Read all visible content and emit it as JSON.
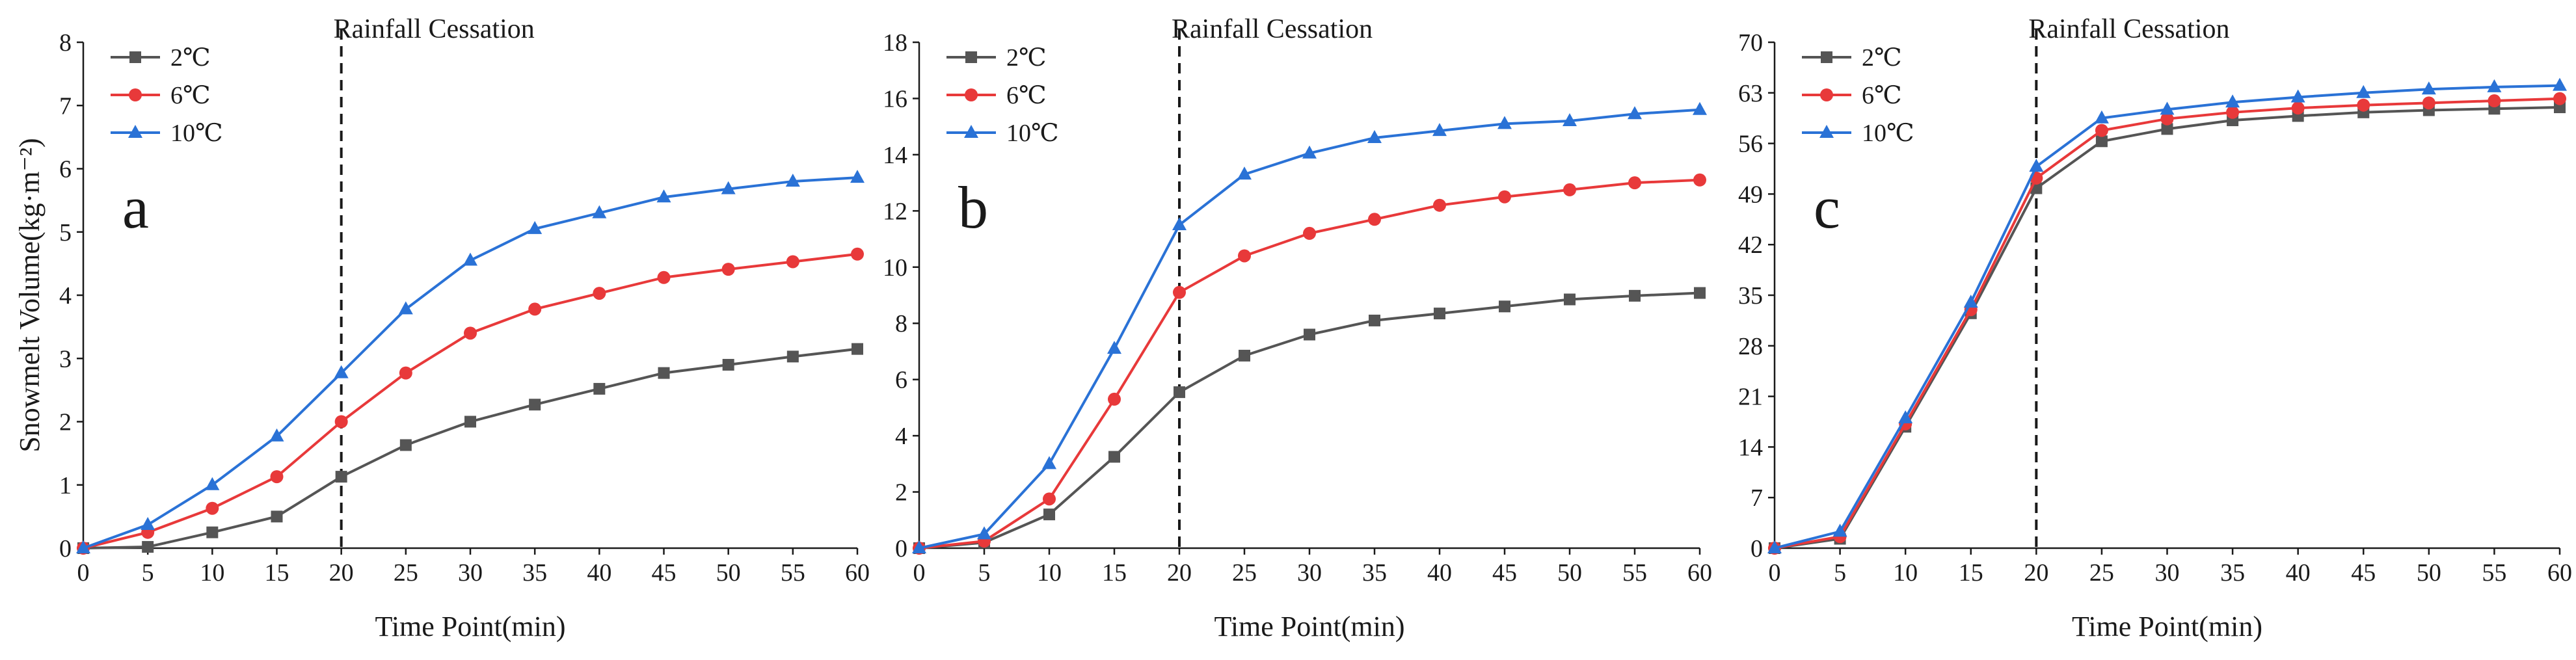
{
  "chart_data": [
    {
      "type": "line",
      "panel_label": "a",
      "annotation": "Rainfall Cessation",
      "annotation_x": 20,
      "xlabel": "Time Point(min)",
      "ylabel": "Snowmelt Volume(kg·m⁻²)",
      "x": [
        0,
        5,
        10,
        15,
        20,
        25,
        30,
        35,
        40,
        45,
        50,
        55,
        60
      ],
      "xlim": [
        0,
        60
      ],
      "ylim": [
        0,
        8
      ],
      "yticks": [
        0,
        1,
        2,
        3,
        4,
        5,
        6,
        7,
        8
      ],
      "legend_position": "top-left",
      "series": [
        {
          "name": "2℃",
          "color": "#555555",
          "marker": "square",
          "values": [
            0,
            0.02,
            0.25,
            0.5,
            1.13,
            1.63,
            2.0,
            2.27,
            2.52,
            2.77,
            2.9,
            3.03,
            3.15
          ]
        },
        {
          "name": "6℃",
          "color": "#e8393a",
          "marker": "circle",
          "values": [
            0,
            0.25,
            0.63,
            1.13,
            2.0,
            2.77,
            3.4,
            3.78,
            4.03,
            4.28,
            4.41,
            4.53,
            4.65
          ]
        },
        {
          "name": "10℃",
          "color": "#2a72d6",
          "marker": "triangle",
          "values": [
            0,
            0.37,
            1.0,
            1.77,
            2.77,
            3.78,
            4.55,
            5.05,
            5.3,
            5.55,
            5.68,
            5.8,
            5.86
          ]
        }
      ]
    },
    {
      "type": "line",
      "panel_label": "b",
      "annotation": "Rainfall Cessation",
      "annotation_x": 20,
      "xlabel": "Time Point(min)",
      "ylabel": "",
      "x": [
        0,
        5,
        10,
        15,
        20,
        25,
        30,
        35,
        40,
        45,
        50,
        55,
        60
      ],
      "xlim": [
        0,
        60
      ],
      "ylim": [
        0,
        18
      ],
      "yticks": [
        0,
        2,
        4,
        6,
        8,
        10,
        12,
        14,
        16,
        18
      ],
      "legend_position": "top-left",
      "series": [
        {
          "name": "2℃",
          "color": "#555555",
          "marker": "square",
          "values": [
            0,
            0.2,
            1.2,
            3.25,
            5.55,
            6.85,
            7.6,
            8.1,
            8.35,
            8.6,
            8.85,
            8.98,
            9.08
          ]
        },
        {
          "name": "6℃",
          "color": "#e8393a",
          "marker": "circle",
          "values": [
            0,
            0.25,
            1.75,
            5.3,
            9.1,
            10.4,
            11.2,
            11.7,
            12.2,
            12.5,
            12.75,
            13.0,
            13.1
          ]
        },
        {
          "name": "10℃",
          "color": "#2a72d6",
          "marker": "triangle",
          "values": [
            0,
            0.5,
            3.0,
            7.1,
            11.5,
            13.3,
            14.05,
            14.6,
            14.85,
            15.1,
            15.2,
            15.45,
            15.6
          ]
        }
      ]
    },
    {
      "type": "line",
      "panel_label": "c",
      "annotation": "Rainfall Cessation",
      "annotation_x": 20,
      "xlabel": "Time Point(min)",
      "ylabel": "",
      "x": [
        0,
        5,
        10,
        15,
        20,
        25,
        30,
        35,
        40,
        45,
        50,
        55,
        60
      ],
      "xlim": [
        0,
        60
      ],
      "ylim": [
        0,
        70
      ],
      "yticks": [
        0,
        7,
        14,
        21,
        28,
        35,
        42,
        49,
        56,
        63,
        70
      ],
      "legend_position": "top-left",
      "series": [
        {
          "name": "2℃",
          "color": "#555555",
          "marker": "square",
          "values": [
            0,
            1.3,
            16.8,
            32.5,
            49.8,
            56.3,
            58.0,
            59.2,
            59.8,
            60.3,
            60.6,
            60.8,
            61.0
          ]
        },
        {
          "name": "6℃",
          "color": "#e8393a",
          "marker": "circle",
          "values": [
            0,
            1.6,
            17.2,
            33.0,
            51.2,
            57.8,
            59.4,
            60.3,
            60.9,
            61.3,
            61.6,
            61.9,
            62.2
          ]
        },
        {
          "name": "10℃",
          "color": "#2a72d6",
          "marker": "triangle",
          "values": [
            0,
            2.3,
            18.0,
            34.0,
            52.8,
            59.5,
            60.7,
            61.7,
            62.4,
            63.0,
            63.5,
            63.8,
            64.0
          ]
        }
      ]
    }
  ]
}
